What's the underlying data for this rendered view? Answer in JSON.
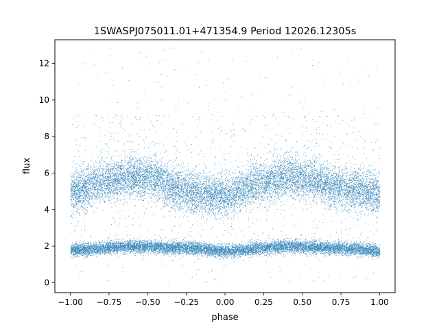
{
  "chart_data": {
    "type": "scatter",
    "title": "1SWASPJ075011.01+471354.9 Period 12026.12305s",
    "xlabel": "phase",
    "ylabel": "flux",
    "xlim": [
      -1.1,
      1.1
    ],
    "ylim": [
      -0.55,
      13.3
    ],
    "xticks": [
      -1.0,
      -0.75,
      -0.5,
      -0.25,
      0.0,
      0.25,
      0.5,
      0.75,
      1.0
    ],
    "xtick_labels": [
      "−1.00",
      "−0.75",
      "−0.50",
      "−0.25",
      "0.00",
      "0.25",
      "0.50",
      "0.75",
      "1.00"
    ],
    "yticks": [
      0,
      2,
      4,
      6,
      8,
      10,
      12
    ],
    "ytick_labels": [
      "0",
      "2",
      "4",
      "6",
      "8",
      "10",
      "12"
    ],
    "grid": false,
    "point_color": "#1f77b4",
    "x_range": [
      -1.0,
      1.0
    ],
    "upper_band": {
      "mean_curve": [
        {
          "x": -1.0,
          "y": 5.0
        },
        {
          "x": -0.75,
          "y": 5.6
        },
        {
          "x": -0.6,
          "y": 5.8
        },
        {
          "x": -0.5,
          "y": 5.75
        },
        {
          "x": -0.25,
          "y": 5.0
        },
        {
          "x": -0.15,
          "y": 4.8
        },
        {
          "x": 0.0,
          "y": 4.8
        },
        {
          "x": 0.25,
          "y": 5.5
        },
        {
          "x": 0.4,
          "y": 5.8
        },
        {
          "x": 0.5,
          "y": 5.7
        },
        {
          "x": 0.75,
          "y": 5.2
        },
        {
          "x": 1.0,
          "y": 4.9
        }
      ],
      "spread": 0.55
    },
    "lower_band": {
      "mean_curve": [
        {
          "x": -1.0,
          "y": 1.8
        },
        {
          "x": -0.6,
          "y": 2.0
        },
        {
          "x": -0.25,
          "y": 1.9
        },
        {
          "x": 0.0,
          "y": 1.75
        },
        {
          "x": 0.4,
          "y": 2.0
        },
        {
          "x": 0.75,
          "y": 1.9
        },
        {
          "x": 1.0,
          "y": 1.75
        }
      ],
      "spread": 0.17
    },
    "outlier_range": [
      0.0,
      12.9
    ]
  }
}
